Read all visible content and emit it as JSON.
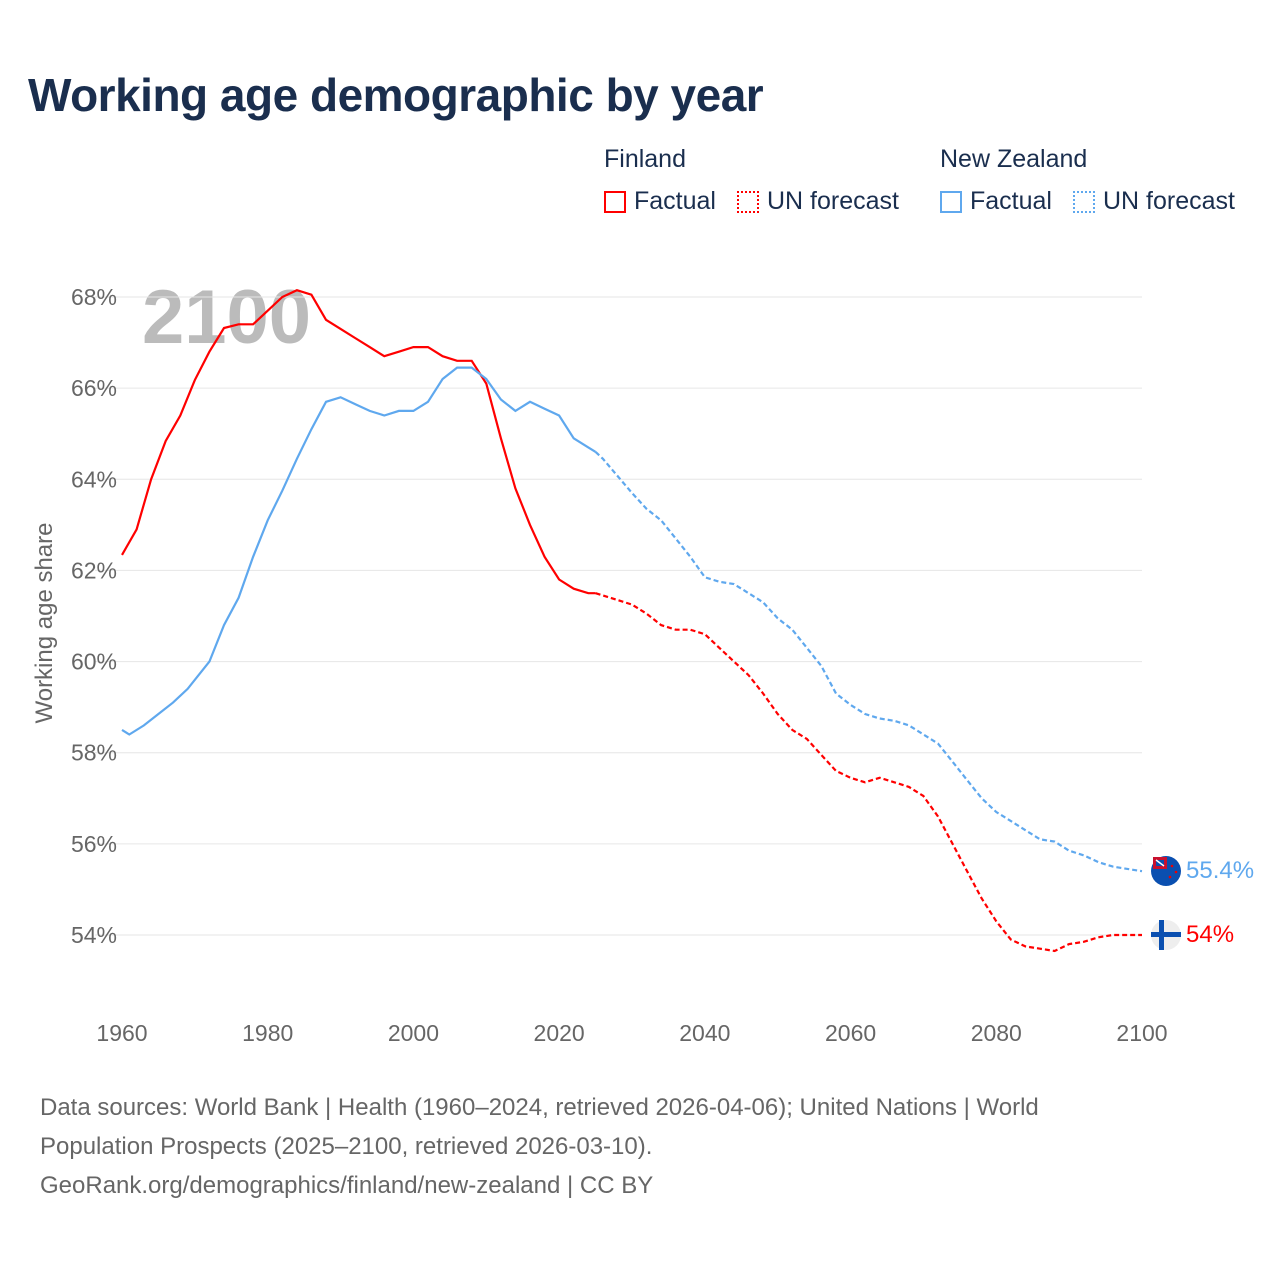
{
  "title": "Working age demographic by year",
  "legend": {
    "groups": [
      {
        "name": "Finland",
        "items": [
          "Factual",
          "UN forecast"
        ],
        "color": "#ff0000"
      },
      {
        "name": "New Zealand",
        "items": [
          "Factual",
          "UN forecast"
        ],
        "color": "#5fa8ee"
      }
    ]
  },
  "year_watermark": "2100",
  "end_labels": {
    "finland": "54%",
    "new_zealand": "55.4%"
  },
  "flags": {
    "finland": "finland-flag-icon",
    "new_zealand": "new-zealand-flag-icon"
  },
  "footer": {
    "line1": "Data sources: World Bank | Health (1960–2024, retrieved 2026-04-06); United Nations | World",
    "line2": "Population Prospects (2025–2100, retrieved 2026-03-10).",
    "line3": "GeoRank.org/demographics/finland/new-zealand | CC BY"
  },
  "chart_data": {
    "type": "line",
    "title": "Working age demographic by year",
    "xlabel": "",
    "ylabel": "Working age share",
    "xlim": [
      1960,
      2100
    ],
    "ylim": [
      53,
      68.5
    ],
    "xticks": [
      1960,
      1980,
      2000,
      2020,
      2040,
      2060,
      2080,
      2100
    ],
    "xtick_labels": [
      "1960",
      "1980",
      "2000",
      "2020",
      "2040",
      "2060",
      "2080",
      "2100"
    ],
    "yticks": [
      54,
      56,
      58,
      60,
      62,
      64,
      66,
      68
    ],
    "ytick_labels": [
      "54%",
      "56%",
      "58%",
      "60%",
      "62%",
      "64%",
      "66%",
      "68%"
    ],
    "grid": true,
    "legend_position": "top-right",
    "forecast_start": 2025,
    "series": [
      {
        "name": "Finland",
        "color": "#ff0000",
        "x": [
          1960,
          1962,
          1964,
          1966,
          1968,
          1970,
          1972,
          1974,
          1976,
          1978,
          1980,
          1982,
          1984,
          1986,
          1988,
          1990,
          1992,
          1994,
          1996,
          1998,
          2000,
          2002,
          2004,
          2006,
          2008,
          2010,
          2012,
          2014,
          2016,
          2018,
          2020,
          2022,
          2024,
          2025,
          2028,
          2030,
          2032,
          2034,
          2036,
          2038,
          2040,
          2042,
          2044,
          2046,
          2048,
          2050,
          2052,
          2054,
          2056,
          2058,
          2060,
          2062,
          2064,
          2066,
          2068,
          2070,
          2072,
          2074,
          2076,
          2078,
          2080,
          2082,
          2084,
          2086,
          2088,
          2090,
          2092,
          2094,
          2096,
          2098,
          2100
        ],
        "y": [
          62.34,
          62.9,
          64.0,
          64.84,
          65.4,
          66.18,
          66.8,
          67.32,
          67.4,
          67.4,
          67.7,
          68.0,
          68.15,
          68.05,
          67.5,
          67.3,
          67.1,
          66.9,
          66.7,
          66.8,
          66.9,
          66.9,
          66.7,
          66.6,
          66.6,
          66.1,
          64.9,
          63.8,
          63.0,
          62.3,
          61.8,
          61.6,
          61.5,
          61.5,
          61.35,
          61.25,
          61.05,
          60.8,
          60.7,
          60.7,
          60.6,
          60.3,
          60.0,
          59.7,
          59.3,
          58.85,
          58.5,
          58.3,
          57.95,
          57.6,
          57.45,
          57.35,
          57.45,
          57.35,
          57.25,
          57.05,
          56.6,
          56.0,
          55.4,
          54.8,
          54.3,
          53.9,
          53.75,
          53.7,
          53.65,
          53.8,
          53.85,
          53.95,
          54.0,
          54.0,
          54.0
        ]
      },
      {
        "name": "New Zealand",
        "color": "#5fa8ee",
        "x": [
          1960,
          1961,
          1963,
          1965,
          1967,
          1969,
          1972,
          1974,
          1976,
          1978,
          1980,
          1982,
          1984,
          1986,
          1988,
          1990,
          1992,
          1994,
          1996,
          1998,
          2000,
          2002,
          2004,
          2006,
          2008,
          2010,
          2012,
          2014,
          2016,
          2018,
          2020,
          2022,
          2024,
          2025,
          2026,
          2030,
          2032,
          2034,
          2036,
          2038,
          2040,
          2042,
          2044,
          2046,
          2048,
          2050,
          2052,
          2054,
          2056,
          2058,
          2060,
          2062,
          2064,
          2066,
          2068,
          2070,
          2072,
          2074,
          2076,
          2078,
          2080,
          2082,
          2084,
          2086,
          2088,
          2090,
          2092,
          2094,
          2096,
          2098,
          2100
        ],
        "y": [
          58.5,
          58.4,
          58.6,
          58.85,
          59.1,
          59.4,
          60.0,
          60.8,
          61.4,
          62.3,
          63.1,
          63.75,
          64.45,
          65.1,
          65.7,
          65.8,
          65.65,
          65.5,
          65.4,
          65.5,
          65.5,
          65.7,
          66.2,
          66.45,
          66.45,
          66.2,
          65.75,
          65.5,
          65.7,
          65.55,
          65.4,
          64.9,
          64.7,
          64.6,
          64.45,
          63.7,
          63.35,
          63.1,
          62.7,
          62.3,
          61.85,
          61.75,
          61.7,
          61.5,
          61.3,
          60.95,
          60.7,
          60.3,
          59.9,
          59.3,
          59.05,
          58.85,
          58.75,
          58.7,
          58.6,
          58.4,
          58.2,
          57.8,
          57.4,
          57.0,
          56.7,
          56.5,
          56.3,
          56.1,
          56.05,
          55.85,
          55.75,
          55.6,
          55.5,
          55.45,
          55.4
        ]
      }
    ]
  }
}
